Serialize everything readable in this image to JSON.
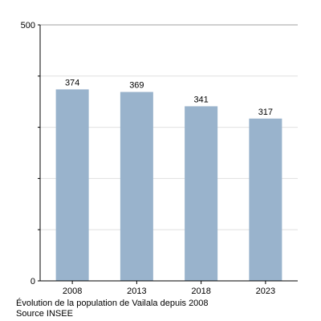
{
  "chart_data": {
    "type": "bar",
    "categories": [
      "2008",
      "2013",
      "2018",
      "2023"
    ],
    "values": [
      374,
      369,
      341,
      317
    ],
    "ylim": [
      0,
      500
    ],
    "y_tick_labels": [
      "0",
      "500"
    ],
    "grid": true,
    "bar_color": "#99b3cc",
    "grid_color": "#e0e0e0"
  },
  "caption": {
    "title": "Évolution de la population de Vailala depuis 2008",
    "source": "Source INSEE"
  }
}
